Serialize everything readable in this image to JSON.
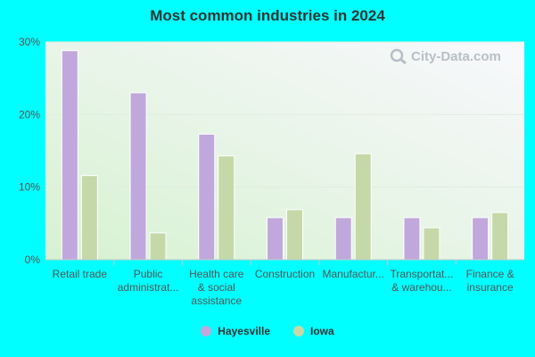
{
  "chart_data": {
    "type": "bar",
    "title": "Most common industries in 2024",
    "categories": [
      [
        "Retail trade"
      ],
      [
        "Public",
        "administrat..."
      ],
      [
        "Health care",
        "& social",
        "assistance"
      ],
      [
        "Construction"
      ],
      [
        "Manufactur..."
      ],
      [
        "Transportat...",
        "& warehou..."
      ],
      [
        "Finance &",
        "insurance"
      ]
    ],
    "series": [
      {
        "name": "Hayesville",
        "color": "#c0a8dc",
        "values": [
          28.8,
          23.0,
          17.3,
          5.8,
          5.8,
          5.8,
          5.8
        ]
      },
      {
        "name": "Iowa",
        "color": "#c5d9a8",
        "values": [
          11.6,
          3.7,
          14.3,
          6.9,
          14.6,
          4.4,
          6.5
        ]
      }
    ],
    "ylim": [
      0,
      30
    ],
    "yticks": [
      0,
      10,
      20,
      30
    ],
    "ytick_labels": [
      "0%",
      "10%",
      "20%",
      "30%"
    ],
    "grid": true,
    "legend_position": "bottom"
  },
  "watermark": {
    "text": "City-Data.com",
    "icon": "magnifier-icon"
  }
}
